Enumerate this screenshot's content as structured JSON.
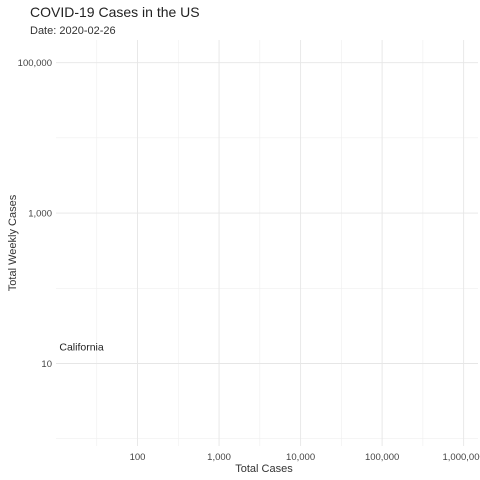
{
  "chart_data": {
    "type": "scatter",
    "title": "COVID-19 Cases in the US",
    "subtitle": "Date: 2020-02-26",
    "xlabel": "Total Cases",
    "ylabel": "Total Weekly Cases",
    "x_scale": "log10",
    "y_scale": "log10",
    "xlim": [
      10,
      1500000
    ],
    "ylim": [
      0.8,
      200000
    ],
    "x_ticks": [
      100,
      1000,
      10000,
      100000,
      1000000
    ],
    "x_tick_labels": [
      "100",
      "1,000",
      "10,000",
      "100,000",
      "1,000,000"
    ],
    "y_ticks": [
      10,
      1000,
      100000
    ],
    "y_tick_labels": [
      "10",
      "1,000",
      "100,000"
    ],
    "grid": true,
    "legend": "none",
    "annotations": [
      {
        "text": "California",
        "x": 11,
        "y": 15
      }
    ]
  }
}
